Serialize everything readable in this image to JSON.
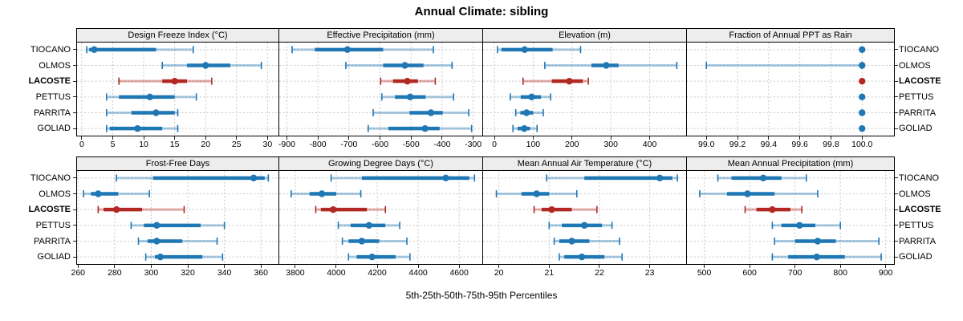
{
  "title": "Annual Climate: sibling",
  "caption": "5th-25th-50th-75th-95th Percentiles",
  "row_labels": [
    "TIOCANO",
    "OLMOS",
    "LACOSTE",
    "PETTUS",
    "PARRITA",
    "GOLIAD"
  ],
  "highlight_label": "LACOSTE",
  "colors": {
    "series_blue": "#1f77b4",
    "series_red": "#b22822",
    "strip_bg": "#ededed",
    "grid": "#c8c8c8",
    "border": "#000000"
  },
  "chart_data": {
    "type": "dot-interval",
    "percentile_labels": [
      "5th",
      "25th",
      "50th",
      "75th",
      "95th"
    ],
    "legend_position": "none",
    "grid": "dashed",
    "panels": [
      {
        "title": "Design Freeze Index (°C)",
        "row": 0,
        "col": 0,
        "xlim": [
          -0.9,
          31.9
        ],
        "ticks": [
          0,
          5,
          10,
          15,
          20,
          25,
          30
        ],
        "tick_labels": [
          "0",
          "5",
          "10",
          "15",
          "20",
          "25",
          "30"
        ],
        "series": [
          {
            "name": "TIOCANO",
            "p": [
              0.8,
              1.2,
              2,
              12,
              18
            ]
          },
          {
            "name": "OLMOS",
            "p": [
              13,
              17,
              20,
              24,
              29
            ]
          },
          {
            "name": "LACOSTE",
            "p": [
              6,
              13,
              15,
              17,
              21
            ]
          },
          {
            "name": "PETTUS",
            "p": [
              4,
              6,
              11,
              15,
              18.5
            ]
          },
          {
            "name": "PARRITA",
            "p": [
              4,
              8,
              12,
              15,
              15.5
            ]
          },
          {
            "name": "GOLIAD",
            "p": [
              4,
              4.5,
              9,
              13,
              15.5
            ]
          }
        ]
      },
      {
        "title": "Effective Precipitation (mm)",
        "row": 0,
        "col": 1,
        "xlim": [
          -927,
          -268
        ],
        "ticks": [
          -900,
          -800,
          -700,
          -600,
          -500,
          -400,
          -300
        ],
        "tick_labels": [
          "-900",
          "-800",
          "-700",
          "-600",
          "-500",
          "-400",
          "-300"
        ],
        "series": [
          {
            "name": "TIOCANO",
            "p": [
              -883,
              -810,
              -705,
              -590,
              -428
            ]
          },
          {
            "name": "OLMOS",
            "p": [
              -710,
              -590,
              -520,
              -460,
              -368
            ]
          },
          {
            "name": "LACOSTE",
            "p": [
              -598,
              -558,
              -512,
              -478,
              -422
            ]
          },
          {
            "name": "PETTUS",
            "p": [
              -594,
              -552,
              -503,
              -453,
              -363
            ]
          },
          {
            "name": "PARRITA",
            "p": [
              -622,
              -505,
              -436,
              -398,
              -314
            ]
          },
          {
            "name": "GOLIAD",
            "p": [
              -638,
              -573,
              -455,
              -408,
              -305
            ]
          }
        ]
      },
      {
        "title": "Elevation (m)",
        "row": 0,
        "col": 2,
        "xlim": [
          -31,
          496
        ],
        "ticks": [
          0,
          100,
          200,
          300,
          400
        ],
        "tick_labels": [
          "0",
          "100",
          "200",
          "300",
          "400"
        ],
        "series": [
          {
            "name": "TIOCANO",
            "p": [
              8,
              18,
              78,
              150,
              222
            ]
          },
          {
            "name": "OLMOS",
            "p": [
              130,
              250,
              288,
              320,
              470
            ]
          },
          {
            "name": "LACOSTE",
            "p": [
              74,
              148,
              193,
              228,
              242
            ]
          },
          {
            "name": "PETTUS",
            "p": [
              41,
              68,
              96,
              120,
              145
            ]
          },
          {
            "name": "PARRITA",
            "p": [
              55,
              67,
              83,
              100,
              126
            ]
          },
          {
            "name": "GOLIAD",
            "p": [
              48,
              60,
              77,
              92,
              110
            ]
          }
        ]
      },
      {
        "title": "Fraction of Annual PPT as Rain",
        "row": 0,
        "col": 3,
        "xlim": [
          98.87,
          100.21
        ],
        "ticks": [
          99.0,
          99.2,
          99.4,
          99.6,
          99.8,
          100.0
        ],
        "tick_labels": [
          "99.0",
          "99.2",
          "99.4",
          "99.6",
          "99.8",
          "100.0"
        ],
        "series": [
          {
            "name": "TIOCANO",
            "p": [
              100,
              100,
              100,
              100,
              100
            ]
          },
          {
            "name": "OLMOS",
            "p": [
              99,
              100,
              100,
              100,
              100
            ]
          },
          {
            "name": "LACOSTE",
            "p": [
              100,
              100,
              100,
              100,
              100
            ]
          },
          {
            "name": "PETTUS",
            "p": [
              100,
              100,
              100,
              100,
              100
            ]
          },
          {
            "name": "PARRITA",
            "p": [
              100,
              100,
              100,
              100,
              100
            ]
          },
          {
            "name": "GOLIAD",
            "p": [
              100,
              100,
              100,
              100,
              100
            ]
          }
        ]
      },
      {
        "title": "Frost-Free Days",
        "row": 1,
        "col": 0,
        "xlim": [
          259,
          370
        ],
        "ticks": [
          260,
          280,
          300,
          320,
          340,
          360
        ],
        "tick_labels": [
          "260",
          "280",
          "300",
          "320",
          "340",
          "360"
        ],
        "series": [
          {
            "name": "TIOCANO",
            "p": [
              281,
              301,
              356,
              362,
              364
            ]
          },
          {
            "name": "OLMOS",
            "p": [
              263,
              267,
              271,
              282,
              299
            ]
          },
          {
            "name": "LACOSTE",
            "p": [
              271,
              274,
              281,
              295,
              318
            ]
          },
          {
            "name": "PETTUS",
            "p": [
              289,
              296,
              303,
              327,
              340
            ]
          },
          {
            "name": "PARRITA",
            "p": [
              293,
              298,
              303,
              317,
              336
            ]
          },
          {
            "name": "GOLIAD",
            "p": [
              297,
              302,
              305,
              328,
              339
            ]
          }
        ]
      },
      {
        "title": "Growing Degree Days (°C)",
        "row": 1,
        "col": 1,
        "xlim": [
          3718,
          4717
        ],
        "ticks": [
          3800,
          4000,
          4200,
          4400,
          4600
        ],
        "tick_labels": [
          "3800",
          "4000",
          "4200",
          "4400",
          "4600"
        ],
        "series": [
          {
            "name": "TIOCANO",
            "p": [
              3975,
              4125,
              4535,
              4650,
              4675
            ]
          },
          {
            "name": "OLMOS",
            "p": [
              3780,
              3870,
              3930,
              4000,
              4120
            ]
          },
          {
            "name": "LACOSTE",
            "p": [
              3900,
              3925,
              3985,
              4150,
              4240
            ]
          },
          {
            "name": "PETTUS",
            "p": [
              4010,
              4070,
              4160,
              4240,
              4310
            ]
          },
          {
            "name": "PARRITA",
            "p": [
              4030,
              4060,
              4125,
              4210,
              4345
            ]
          },
          {
            "name": "GOLIAD",
            "p": [
              4060,
              4100,
              4175,
              4290,
              4360
            ]
          }
        ]
      },
      {
        "title": "Mean Annual Air Temperature (°C)",
        "row": 1,
        "col": 2,
        "xlim": [
          19.67,
          23.74
        ],
        "ticks": [
          20,
          21,
          22,
          23
        ],
        "tick_labels": [
          "20",
          "21",
          "22",
          "23"
        ],
        "series": [
          {
            "name": "TIOCANO",
            "p": [
              20.95,
              21.7,
              23.2,
              23.45,
              23.55
            ]
          },
          {
            "name": "OLMOS",
            "p": [
              19.95,
              20.45,
              20.75,
              21.0,
              21.55
            ]
          },
          {
            "name": "LACOSTE",
            "p": [
              20.7,
              20.85,
              21.05,
              21.45,
              21.95
            ]
          },
          {
            "name": "PETTUS",
            "p": [
              21.0,
              21.25,
              21.7,
              22.05,
              22.25
            ]
          },
          {
            "name": "PARRITA",
            "p": [
              21.1,
              21.2,
              21.45,
              21.8,
              22.4
            ]
          },
          {
            "name": "GOLIAD",
            "p": [
              21.2,
              21.3,
              21.65,
              22.1,
              22.45
            ]
          }
        ]
      },
      {
        "title": "Mean Annual Precipitation (mm)",
        "row": 1,
        "col": 3,
        "xlim": [
          460,
          920
        ],
        "ticks": [
          500,
          600,
          700,
          800,
          900
        ],
        "tick_labels": [
          "500",
          "600",
          "700",
          "800",
          "900"
        ],
        "series": [
          {
            "name": "TIOCANO",
            "p": [
              530,
              560,
              630,
              670,
              725
            ]
          },
          {
            "name": "OLMOS",
            "p": [
              490,
              550,
              595,
              655,
              750
            ]
          },
          {
            "name": "LACOSTE",
            "p": [
              590,
              615,
              650,
              690,
              715
            ]
          },
          {
            "name": "PETTUS",
            "p": [
              650,
              670,
              710,
              745,
              800
            ]
          },
          {
            "name": "PARRITA",
            "p": [
              655,
              700,
              750,
              790,
              885
            ]
          },
          {
            "name": "GOLIAD",
            "p": [
              650,
              685,
              748,
              810,
              890
            ]
          }
        ]
      }
    ]
  }
}
